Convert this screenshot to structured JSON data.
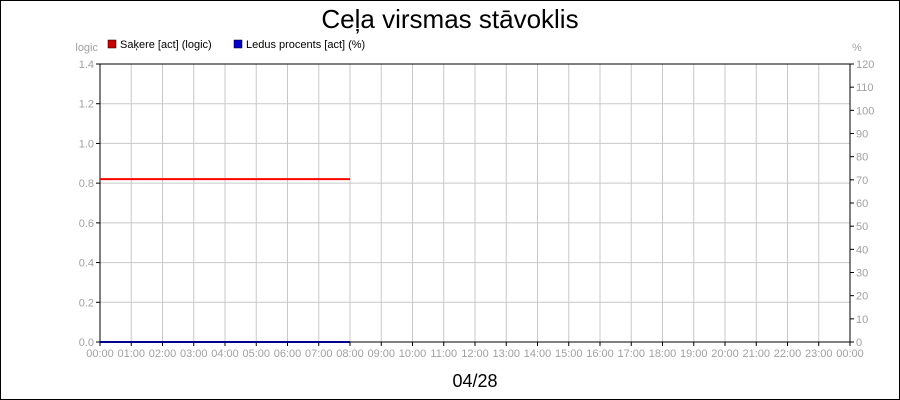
{
  "chart_data": {
    "type": "line",
    "title": "Ceļa virsmas stāvoklis",
    "date_label": "04/28",
    "left_unit": "logic",
    "right_unit": "%",
    "left_axis": {
      "min": 0,
      "max": 1.4,
      "ticks": [
        "0.0",
        "0.2",
        "0.4",
        "0.6",
        "0.8",
        "1.0",
        "1.2",
        "1.4"
      ]
    },
    "right_axis": {
      "min": 0,
      "max": 120,
      "ticks": [
        "0",
        "10",
        "20",
        "30",
        "40",
        "50",
        "60",
        "70",
        "80",
        "90",
        "100",
        "110",
        "120"
      ]
    },
    "x_ticks": [
      "00:00",
      "01:00",
      "02:00",
      "03:00",
      "04:00",
      "05:00",
      "06:00",
      "07:00",
      "08:00",
      "09:00",
      "10:00",
      "11:00",
      "12:00",
      "13:00",
      "14:00",
      "15:00",
      "16:00",
      "17:00",
      "18:00",
      "19:00",
      "20:00",
      "21:00",
      "22:00",
      "23:00",
      "00:00"
    ],
    "grid": true,
    "legend_position": "top-left",
    "series": [
      {
        "name": "Saķere [act] (logic)",
        "color": "#ff0000",
        "legend_color": "#cc0000",
        "axis": "left",
        "x_hours": [
          0,
          8
        ],
        "values": [
          0.82,
          0.82
        ]
      },
      {
        "name": "Ledus procents [act] (%)",
        "color": "#00008b",
        "legend_color": "#0000cc",
        "axis": "right",
        "x_hours": [
          0,
          8
        ],
        "values": [
          0,
          0
        ]
      }
    ]
  }
}
